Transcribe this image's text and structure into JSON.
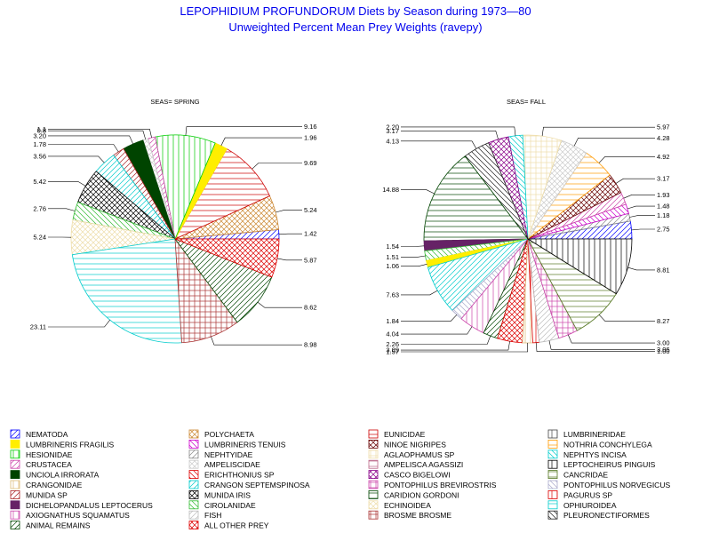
{
  "chart_data": {
    "type": "pie",
    "title": "LEPOPHIDIUM PROFUNDORUM Diets by Season during 1973—80",
    "subtitle": "Unweighted Percent Mean Prey Weights (ravepy)",
    "legend": [
      {
        "name": "NEMATODA",
        "color": "#0000ff"
      },
      {
        "name": "POLYCHAETA",
        "color": "#cc8833"
      },
      {
        "name": "EUNICIDAE",
        "color": "#cc0000"
      },
      {
        "name": "LUMBRINERIDAE",
        "color": "#444444"
      },
      {
        "name": "LUMBRINERIS FRAGILIS",
        "color": "#ffee00"
      },
      {
        "name": "LUMBRINERIS TENUIS",
        "color": "#cc00cc"
      },
      {
        "name": "NINOE NIGRIPES",
        "color": "#660000"
      },
      {
        "name": "NOTHRIA CONCHYLEGA",
        "color": "#ff9900"
      },
      {
        "name": "HESIONIDAE",
        "color": "#00cc00"
      },
      {
        "name": "NEPHTYIDAE",
        "color": "#888888"
      },
      {
        "name": "AGLAOPHAMUS SP",
        "color": "#eeddaa"
      },
      {
        "name": "NEPHTYS INCISA",
        "color": "#00cccc"
      },
      {
        "name": "CRUSTACEA",
        "color": "#cc44aa"
      },
      {
        "name": "AMPELISCIDAE",
        "color": "#cccccc"
      },
      {
        "name": "AMPELISCA AGASSIZI",
        "color": "#bb6688"
      },
      {
        "name": "LEPTOCHEIRUS PINGUIS",
        "color": "#000000"
      },
      {
        "name": "UNCIOLA IRRORATA",
        "color": "#004400"
      },
      {
        "name": "ERICHTHONIUS SP",
        "color": "#dd0000"
      },
      {
        "name": "CASCO BIGELOWI",
        "color": "#880088"
      },
      {
        "name": "CANCRIDAE",
        "color": "#557722"
      },
      {
        "name": "CRANGONIDAE",
        "color": "#ddbb77"
      },
      {
        "name": "CRANGON SEPTEMSPINOSA",
        "color": "#00cccc"
      },
      {
        "name": "PONTOPHILUS BREVIROSTRIS",
        "color": "#cc44aa"
      },
      {
        "name": "PONTOPHILUS NORVEGICUS",
        "color": "#aaaacc"
      },
      {
        "name": "MUNIDA SP",
        "color": "#aa2222"
      },
      {
        "name": "MUNIDA IRIS",
        "color": "#000000"
      },
      {
        "name": "CARIDION GORDONI",
        "color": "#004400"
      },
      {
        "name": "PAGURUS SP",
        "color": "#dd0000"
      },
      {
        "name": "DICHELOPANDALUS LEPTOCERUS",
        "color": "#662266"
      },
      {
        "name": "CIROLANIDAE",
        "color": "#33bb33"
      },
      {
        "name": "ECHINOIDEA",
        "color": "#eeddaa"
      },
      {
        "name": "OPHIUROIDEA",
        "color": "#00cccc"
      },
      {
        "name": "AXIOGNATHUS SQUAMATUS",
        "color": "#cc44aa"
      },
      {
        "name": "FISH",
        "color": "#bbbbbb"
      },
      {
        "name": "BROSME BROSME",
        "color": "#aa3333"
      },
      {
        "name": "PLEURONECTIFORMES",
        "color": "#222222"
      },
      {
        "name": "ANIMAL REMAINS",
        "color": "#004400"
      },
      {
        "name": "ALL OTHER PREY",
        "color": "#dd0000"
      }
    ],
    "pies": [
      {
        "title": "SEAS= SPRING",
        "slices": [
          {
            "prey": "NEMATODA",
            "value": 1.42,
            "label": "1.42"
          },
          {
            "prey": "POLYCHAETA",
            "value": 5.24,
            "label": "5.24"
          },
          {
            "prey": "EUNICIDAE",
            "value": 9.69,
            "label": "9.69"
          },
          {
            "prey": "LUMBRINERIS FRAGILIS",
            "value": 1.96,
            "label": "1.96"
          },
          {
            "prey": "HESIONIDAE",
            "value": 9.16,
            "label": "9.16"
          },
          {
            "prey": "CRUSTACEA",
            "value": 1.1,
            "label": "1.1"
          },
          {
            "prey": "AMPELISCIDAE",
            "value": 0.8,
            "label": "0.8"
          },
          {
            "prey": "UNCIOLA IRRORATA",
            "value": 3.2,
            "label": "3.20"
          },
          {
            "prey": "MUNIDA SP",
            "value": 1.78,
            "label": "1.78"
          },
          {
            "prey": "CRANGON SEPTEMSPINOSA",
            "value": 3.56,
            "label": "3.56"
          },
          {
            "prey": "MUNIDA IRIS",
            "value": 5.42,
            "label": "5.42"
          },
          {
            "prey": "CIROLANIDAE",
            "value": 2.76,
            "label": "2.76"
          },
          {
            "prey": "ECHINOIDEA",
            "value": 5.24,
            "label": "5.24"
          },
          {
            "prey": "OPHIUROIDEA",
            "value": 23.11,
            "label": "23.11"
          },
          {
            "prey": "BROSME BROSME",
            "value": 8.98,
            "label": "8.98"
          },
          {
            "prey": "ANIMAL REMAINS",
            "value": 8.62,
            "label": "8.62"
          },
          {
            "prey": "ALL OTHER PREY",
            "value": 5.87,
            "label": "5.87"
          }
        ]
      },
      {
        "title": "SEAS= FALL",
        "slices": [
          {
            "prey": "NEMATODA",
            "value": 2.75,
            "label": "2.75"
          },
          {
            "prey": "NEPHTYIDAE",
            "value": 1.18,
            "label": "1.18"
          },
          {
            "prey": "LUMBRINERIS TENUIS",
            "value": 1.48,
            "label": "1.48"
          },
          {
            "prey": "CRUSTACEA",
            "value": 1.93,
            "label": "1.93"
          },
          {
            "prey": "NINOE NIGRIPES",
            "value": 3.17,
            "label": "3.17"
          },
          {
            "prey": "NOTHRIA CONCHYLEGA",
            "value": 4.92,
            "label": "4.92"
          },
          {
            "prey": "AMPELISCIDAE",
            "value": 4.28,
            "label": "4.28"
          },
          {
            "prey": "AGLAOPHAMUS SP",
            "value": 5.97,
            "label": "5.97"
          },
          {
            "prey": "NEPHTYS INCISA",
            "value": 2.2,
            "label": "2.20"
          },
          {
            "prey": "CASCO BIGELOWI",
            "value": 3.17,
            "label": "3.17"
          },
          {
            "prey": "PLEURONECTIFORMES",
            "value": 4.13,
            "label": "4.13"
          },
          {
            "prey": "CARIDION GORDONI",
            "value": 14.88,
            "label": "14.88"
          },
          {
            "prey": "DICHELOPANDALUS LEPTOCERUS",
            "value": 1.54,
            "label": "1.54"
          },
          {
            "prey": "CIROLANIDAE",
            "value": 1.51,
            "label": "1.51"
          },
          {
            "prey": "LUMBRINERIS FRAGILIS",
            "value": 1.06,
            "label": "1.06"
          },
          {
            "prey": "CRANGON SEPTEMSPINOSA",
            "value": 7.63,
            "label": "7.63"
          },
          {
            "prey": "PONTOPHILUS NORVEGICUS",
            "value": 1.84,
            "label": "1.84"
          },
          {
            "prey": "AXIOGNATHUS SQUAMATUS",
            "value": 4.04,
            "label": "4.04"
          },
          {
            "prey": "ANIMAL REMAINS",
            "value": 2.26,
            "label": "2.26"
          },
          {
            "prey": "ALL OTHER PREY",
            "value": 3.89,
            "label": "3.89"
          },
          {
            "prey": "CRANGONIDAE",
            "value": 1.57,
            "label": "1.57"
          },
          {
            "prey": "PAGURUS SP",
            "value": 1.0,
            "label": "1.00"
          },
          {
            "prey": "FISH",
            "value": 3.06,
            "label": "3.06"
          },
          {
            "prey": "PONTOPHILUS BREVIROSTRIS",
            "value": 3.0,
            "label": "3.00"
          },
          {
            "prey": "CANCRIDAE",
            "value": 8.27,
            "label": "8.27"
          },
          {
            "prey": "LEPTOCHEIRUS PINGUIS",
            "value": 8.81,
            "label": "8.81"
          }
        ]
      }
    ]
  }
}
